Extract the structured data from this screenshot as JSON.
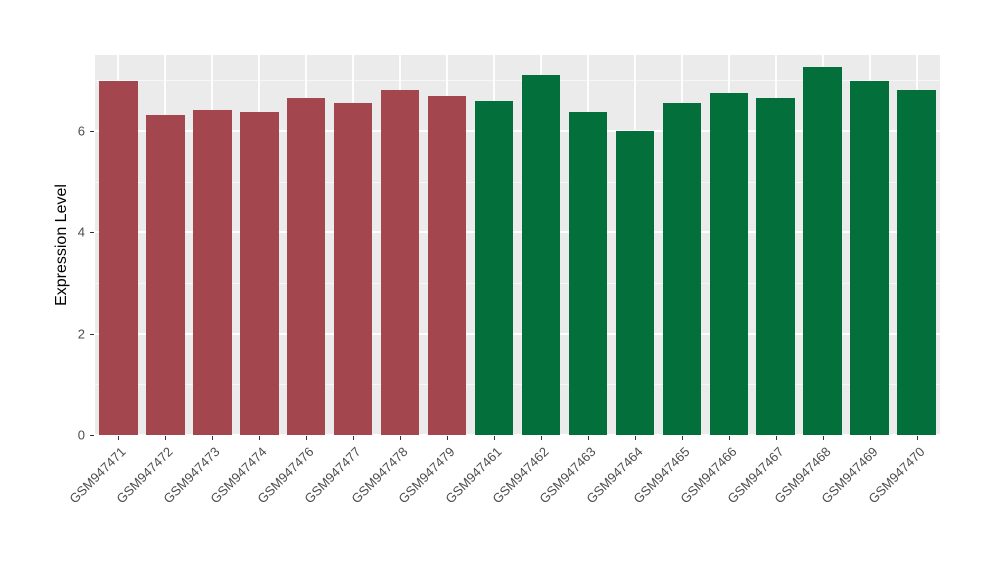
{
  "figure": {
    "background": "#FFFFFF",
    "panel_background": "#EBEBEB",
    "grid_color": "#FFFFFF",
    "axis_text_color": "#4D4D4D",
    "axis_title_color": "#000000"
  },
  "chart_data": {
    "type": "bar",
    "title": "",
    "xlabel": "",
    "ylabel": "Expression Level",
    "ylim": [
      0,
      7.5
    ],
    "yticks": [
      0,
      2,
      4,
      6
    ],
    "minor_gridlines": [
      1,
      3,
      5,
      7
    ],
    "grid": true,
    "legend_position": "none",
    "categories": [
      "GSM947471",
      "GSM947472",
      "GSM947473",
      "GSM947474",
      "GSM947476",
      "GSM947477",
      "GSM947478",
      "GSM947479",
      "GSM947461",
      "GSM947462",
      "GSM947463",
      "GSM947464",
      "GSM947465",
      "GSM947466",
      "GSM947467",
      "GSM947468",
      "GSM947469",
      "GSM947470"
    ],
    "values": [
      6.98,
      6.32,
      6.42,
      6.38,
      6.65,
      6.55,
      6.8,
      6.7,
      6.6,
      7.1,
      6.37,
      6.0,
      6.55,
      6.75,
      6.65,
      7.27,
      6.98,
      6.8
    ],
    "groups": [
      "maroon",
      "maroon",
      "maroon",
      "maroon",
      "maroon",
      "maroon",
      "maroon",
      "maroon",
      "green",
      "green",
      "green",
      "green",
      "green",
      "green",
      "green",
      "green",
      "green",
      "green"
    ],
    "group_colors": {
      "maroon": "#A3464E",
      "green": "#03703C"
    }
  }
}
